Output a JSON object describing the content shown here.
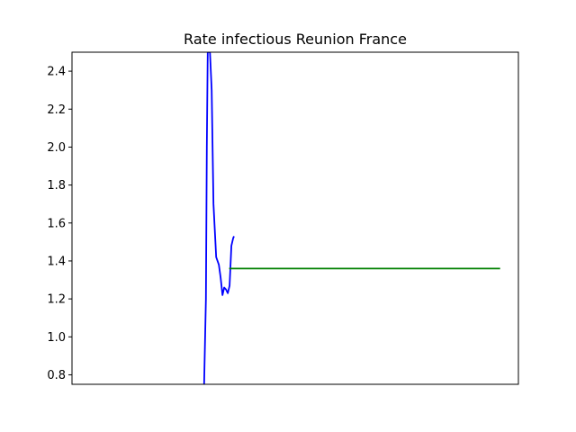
{
  "chart_data": {
    "type": "line",
    "title": "Rate infectious Reunion France",
    "xlabel": "",
    "ylabel": "",
    "x_tick_labels": [],
    "ylim": [
      0.75,
      2.5
    ],
    "xlim": [
      0,
      100
    ],
    "y_ticks": [
      0.8,
      1.0,
      1.2,
      1.4,
      1.6,
      1.8,
      2.0,
      2.2,
      2.4
    ],
    "y_tick_labels": [
      "0.8",
      "1.0",
      "1.2",
      "1.4",
      "1.6",
      "1.8",
      "2.0",
      "2.2",
      "2.4"
    ],
    "grid": false,
    "legend": "none",
    "series": [
      {
        "color": "#0000ff",
        "points": [
          [
            29.6,
            0.75
          ],
          [
            30.0,
            1.2
          ],
          [
            30.2,
            2.0
          ],
          [
            30.4,
            2.5
          ],
          [
            30.9,
            2.5
          ],
          [
            31.3,
            2.3
          ],
          [
            31.7,
            1.7
          ],
          [
            32.3,
            1.42
          ],
          [
            32.9,
            1.38
          ],
          [
            33.3,
            1.31
          ],
          [
            33.7,
            1.22
          ],
          [
            34.1,
            1.26
          ],
          [
            34.5,
            1.25
          ],
          [
            34.9,
            1.23
          ],
          [
            35.3,
            1.27
          ],
          [
            35.7,
            1.48
          ],
          [
            36.1,
            1.52
          ],
          [
            36.3,
            1.53
          ]
        ]
      },
      {
        "color": "#008000",
        "points": [
          [
            35.2,
            1.36
          ],
          [
            95.9,
            1.36
          ]
        ]
      }
    ]
  }
}
